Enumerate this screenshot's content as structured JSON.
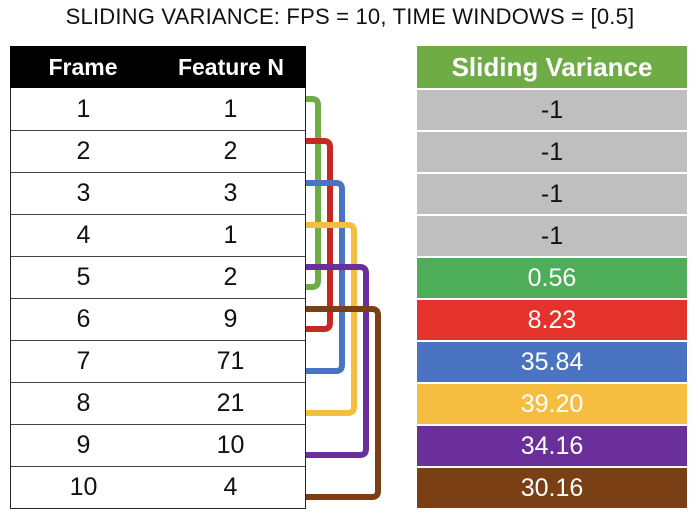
{
  "title": "SLIDING VARIANCE: FPS = 10, TIME WINDOWS = [0.5]",
  "left_table": {
    "headers": {
      "frame": "Frame",
      "feature": "Feature N"
    },
    "rows": [
      {
        "frame": "1",
        "feature": "1"
      },
      {
        "frame": "2",
        "feature": "2"
      },
      {
        "frame": "3",
        "feature": "3"
      },
      {
        "frame": "4",
        "feature": "1"
      },
      {
        "frame": "5",
        "feature": "2"
      },
      {
        "frame": "6",
        "feature": "9"
      },
      {
        "frame": "7",
        "feature": "71"
      },
      {
        "frame": "8",
        "feature": "21"
      },
      {
        "frame": "9",
        "feature": "10"
      },
      {
        "frame": "10",
        "feature": "4"
      }
    ]
  },
  "right_table": {
    "header": "Sliding Variance",
    "header_color": "#6fac46",
    "cells": [
      {
        "value": "-1",
        "bg": "#bfbfbf",
        "fg": "#111111"
      },
      {
        "value": "-1",
        "bg": "#bfbfbf",
        "fg": "#111111"
      },
      {
        "value": "-1",
        "bg": "#bfbfbf",
        "fg": "#111111"
      },
      {
        "value": "-1",
        "bg": "#bfbfbf",
        "fg": "#111111"
      },
      {
        "value": "0.56",
        "bg": "#4ead58",
        "fg": "#ffffff"
      },
      {
        "value": "8.23",
        "bg": "#e5322a",
        "fg": "#ffffff"
      },
      {
        "value": "35.84",
        "bg": "#4a73c1",
        "fg": "#ffffff"
      },
      {
        "value": "39.20",
        "bg": "#f6be40",
        "fg": "#ffffff"
      },
      {
        "value": "34.16",
        "bg": "#6b2f9c",
        "fg": "#ffffff"
      },
      {
        "value": "30.16",
        "bg": "#7b3f16",
        "fg": "#ffffff"
      }
    ]
  },
  "windows": [
    {
      "start_frame": 1,
      "end_frame": 5,
      "color": "#6fac46"
    },
    {
      "start_frame": 2,
      "end_frame": 6,
      "color": "#c52a20"
    },
    {
      "start_frame": 3,
      "end_frame": 7,
      "color": "#4a73c1"
    },
    {
      "start_frame": 4,
      "end_frame": 8,
      "color": "#f6be40"
    },
    {
      "start_frame": 5,
      "end_frame": 9,
      "color": "#6b2f9c"
    },
    {
      "start_frame": 6,
      "end_frame": 10,
      "color": "#7b3f16"
    }
  ]
}
